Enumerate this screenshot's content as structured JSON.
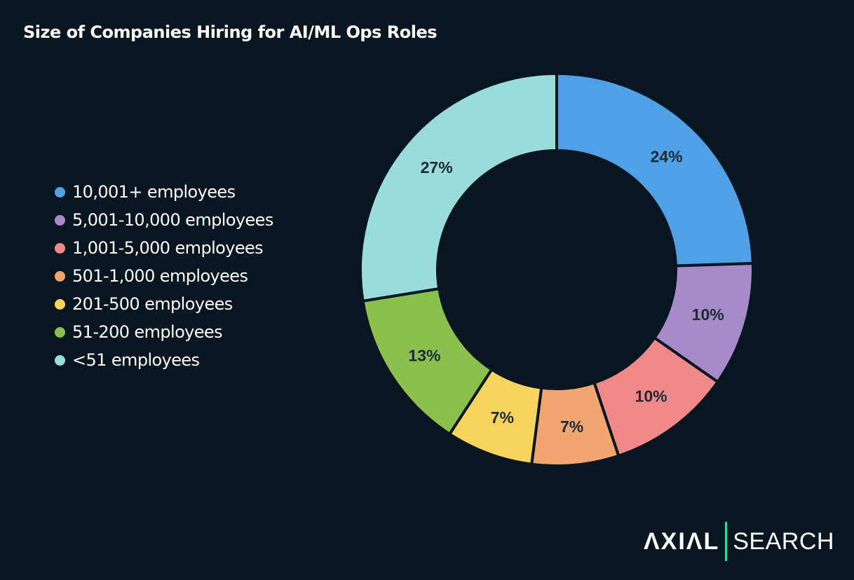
{
  "chart_data": {
    "type": "pie",
    "donut": true,
    "title": "Size of Companies Hiring for AI/ML Ops Roles",
    "legend_position": "left",
    "categories": [
      "10,001+ employees",
      "5,001-10,000 employees",
      "1,001-5,000 employees",
      "501-1,000 employees",
      "201-500 employees",
      "51-200 employees",
      "<51 employees"
    ],
    "values": [
      24,
      10,
      10,
      7,
      7,
      13,
      27
    ],
    "labels": [
      "24%",
      "10%",
      "10%",
      "7%",
      "7%",
      "13%",
      "27%"
    ],
    "colors": [
      "#4fa0e5",
      "#a98ac8",
      "#f08a8a",
      "#f3a56f",
      "#f8d45e",
      "#8bc04e",
      "#9adbdb"
    ]
  },
  "branding": {
    "logo_left": "ΛXIΛL",
    "logo_right": "SEARCH"
  },
  "background": "#071620"
}
